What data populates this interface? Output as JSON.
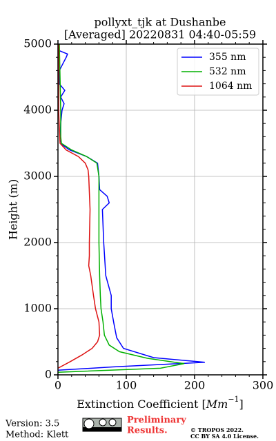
{
  "chart_data": {
    "type": "profile",
    "title": [
      "pollyxt_tjk at Dushanbe",
      "[Averaged] 20220831 04:40-05:59"
    ],
    "xlabel": [
      "Extinction Coefficient [",
      "Mm",
      "−1",
      "]"
    ],
    "ylabel": "Height (m)",
    "xlim": [
      0,
      300
    ],
    "xticks": [
      0,
      100,
      200,
      300
    ],
    "xminorticks": [
      20,
      40,
      60,
      80,
      120,
      140,
      160,
      180,
      220,
      240,
      260,
      280
    ],
    "ylim": [
      0,
      5000
    ],
    "yticks": [
      0,
      1000,
      2000,
      3000,
      4000,
      5000
    ],
    "yminorticks": [
      200,
      400,
      600,
      800,
      1200,
      1400,
      1600,
      1800,
      2200,
      2400,
      2600,
      2800,
      3200,
      3400,
      3600,
      3800,
      4200,
      4400,
      4600,
      4800
    ],
    "grid": true,
    "legend": "upper right",
    "series": [
      {
        "name": "355 nm",
        "color": "#0000ff",
        "heights": [
          70,
          120,
          190,
          260,
          400,
          560,
          770,
          1000,
          1200,
          1500,
          2000,
          2500,
          2600,
          2700,
          2800,
          3000,
          3200,
          3300,
          3400,
          3480,
          3550,
          3800,
          4000,
          4100,
          4200,
          4300,
          4400,
          4600,
          4800,
          4850,
          4900,
          5000
        ],
        "values": [
          0,
          80,
          215,
          140,
          96,
          86,
          82,
          78,
          78,
          70,
          67,
          65,
          75,
          72,
          61,
          60,
          58,
          42,
          17,
          6,
          3,
          4,
          6,
          9,
          4,
          10,
          2,
          2,
          12,
          14,
          2,
          0
        ]
      },
      {
        "name": "532 nm",
        "color": "#00b000",
        "heights": [
          40,
          100,
          170,
          250,
          350,
          450,
          600,
          800,
          1000,
          1200,
          1500,
          2000,
          2500,
          3000,
          3200,
          3300,
          3400,
          3500,
          3600,
          4000,
          4500,
          5000
        ],
        "values": [
          0,
          150,
          185,
          131,
          90,
          75,
          68,
          66,
          63,
          62,
          61,
          60,
          60,
          60,
          57,
          42,
          20,
          5,
          4,
          4,
          3,
          2
        ]
      },
      {
        "name": "1064 nm",
        "color": "#dd1111",
        "heights": [
          100,
          200,
          300,
          400,
          500,
          600,
          800,
          1000,
          1200,
          1500,
          1650,
          1800,
          2000,
          2500,
          3000,
          3100,
          3200,
          3300,
          3400,
          3500,
          4000,
          4500,
          5000
        ],
        "values": [
          0,
          18,
          35,
          50,
          58,
          61,
          60,
          55,
          52,
          48,
          45,
          46,
          46,
          47,
          45,
          44,
          40,
          30,
          12,
          3,
          1,
          1,
          1
        ]
      }
    ]
  },
  "footer": {
    "version": "Version: 3.5",
    "method": "Method: Klett",
    "status": [
      "Preliminary",
      "Results."
    ],
    "copyright": [
      "© TROPOS 2022.",
      "CC BY SA 4.0 License."
    ]
  }
}
